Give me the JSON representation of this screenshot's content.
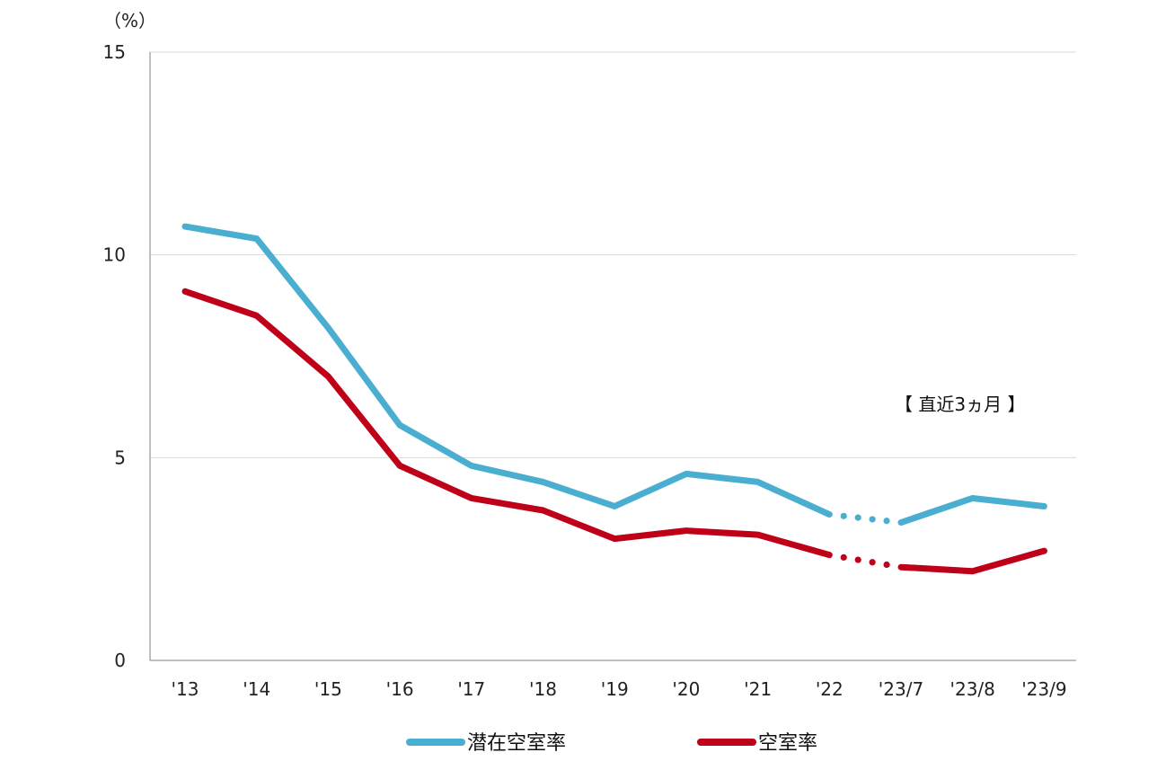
{
  "chart_data": {
    "type": "line",
    "title": "",
    "xlabel": "",
    "ylabel": "",
    "y_unit_label": "（%）",
    "ylim": [
      0,
      15
    ],
    "yticks": [
      0,
      5,
      10,
      15
    ],
    "grid": true,
    "legend_position": "bottom",
    "annotation": "【 直近3ヵ月 】",
    "categories": [
      "'13",
      "'14",
      "'15",
      "'16",
      "'17",
      "'18",
      "'19",
      "'20",
      "'21",
      "'22",
      "'23/7",
      "'23/8",
      "'23/9"
    ],
    "dotted_segment_between": [
      "'22",
      "'23/7"
    ],
    "series": [
      {
        "name": "潜在空室率",
        "color": "#4aaed0",
        "values": [
          10.7,
          10.4,
          8.2,
          5.8,
          4.8,
          4.4,
          3.8,
          4.6,
          4.4,
          3.6,
          3.4,
          4.0,
          3.8
        ]
      },
      {
        "name": "空室率",
        "color": "#bf0019",
        "values": [
          9.1,
          8.5,
          7.0,
          4.8,
          4.0,
          3.7,
          3.0,
          3.2,
          3.1,
          2.6,
          2.3,
          2.2,
          2.7
        ]
      }
    ]
  }
}
